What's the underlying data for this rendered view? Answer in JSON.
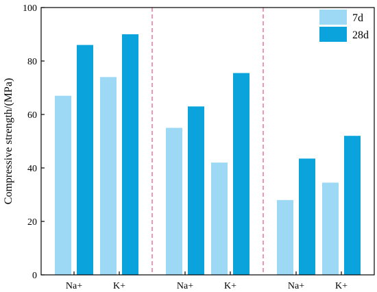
{
  "chart_data": {
    "type": "bar",
    "xlabel": "",
    "ylabel": "Compressive strength/(MPa)",
    "ylim": [
      0,
      100
    ],
    "yticks": [
      "0",
      "20",
      "40",
      "60",
      "80",
      "100"
    ],
    "grid": false,
    "legend_position": "top-right",
    "groups": [
      {
        "categories": [
          "Na+",
          "K+"
        ]
      },
      {
        "categories": [
          "Na+",
          "K+"
        ]
      },
      {
        "categories": [
          "Na+",
          "K+"
        ]
      }
    ],
    "series": [
      {
        "name": "7d",
        "color": "#9dd9f5",
        "values": [
          67,
          74,
          55,
          42,
          28,
          34.5
        ]
      },
      {
        "name": "28d",
        "color": "#0aa3dc",
        "values": [
          86,
          90,
          63,
          75.5,
          43.5,
          52
        ]
      }
    ],
    "separator_color": "#e8508a"
  }
}
